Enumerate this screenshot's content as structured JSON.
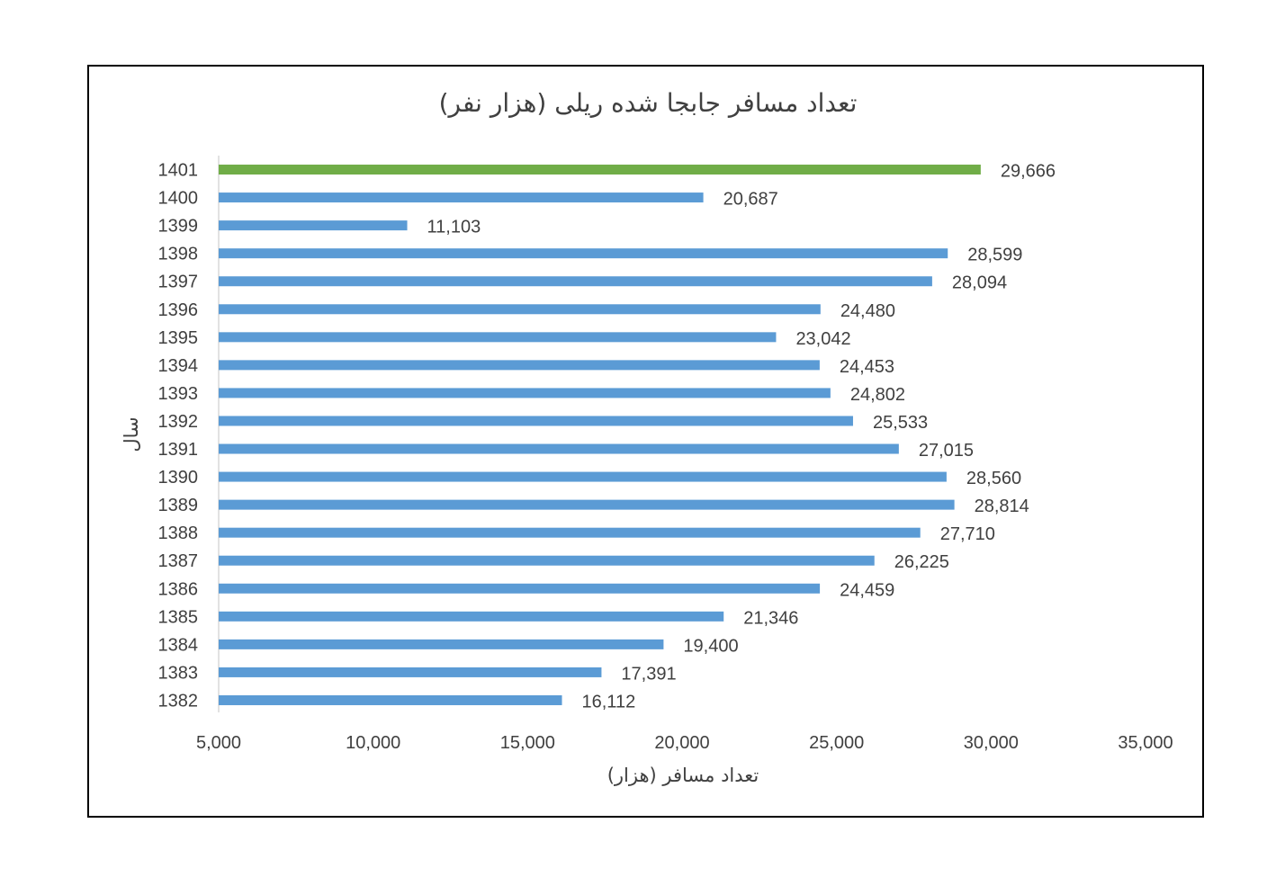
{
  "chart_data": {
    "type": "bar",
    "orientation": "horizontal",
    "title": "تعداد مسافر جابجا شده ریلی (هزار نفر)",
    "xlabel": "تعداد مسافر (هزار)",
    "ylabel": "سال",
    "xlim": [
      5000,
      35000
    ],
    "x_ticks": [
      "5,000",
      "10,000",
      "15,000",
      "20,000",
      "25,000",
      "30,000",
      "35,000"
    ],
    "grid": false,
    "categories": [
      "1401",
      "1400",
      "1399",
      "1398",
      "1397",
      "1396",
      "1395",
      "1394",
      "1393",
      "1392",
      "1391",
      "1390",
      "1389",
      "1388",
      "1387",
      "1386",
      "1385",
      "1384",
      "1383",
      "1382"
    ],
    "values": [
      29666,
      20687,
      11103,
      28599,
      28094,
      24480,
      23042,
      24453,
      24802,
      25533,
      27015,
      28560,
      28814,
      27710,
      26225,
      24459,
      21346,
      19400,
      17391,
      16112
    ],
    "data_labels": [
      "29,666",
      "20,687",
      "11,103",
      "28,599",
      "28,094",
      "24,480",
      "23,042",
      "24,453",
      "24,802",
      "25,533",
      "27,015",
      "28,560",
      "28,814",
      "27,710",
      "26,225",
      "24,459",
      "21,346",
      "19,400",
      "17,391",
      "16,112"
    ],
    "colors": {
      "default_bar": "#5b9bd5",
      "highlight_bar": "#70ad47",
      "highlight_category": "1401",
      "text": "#404040",
      "axis": "#d9d9d9"
    }
  }
}
